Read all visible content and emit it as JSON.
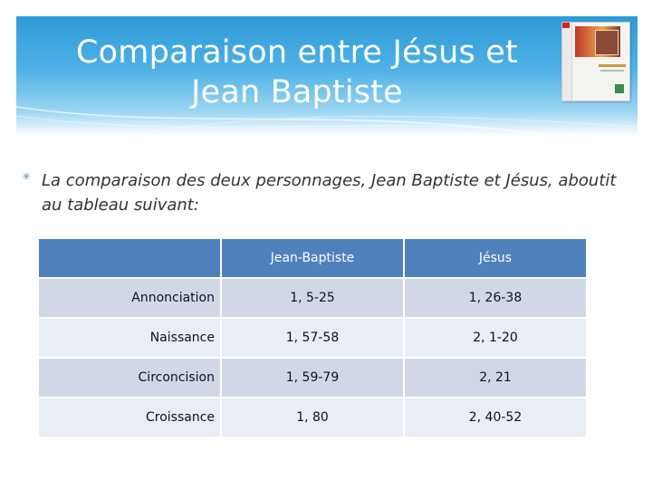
{
  "slide": {
    "title_line1": "Comparaison entre Jésus et",
    "title_line2": "Jean Baptiste",
    "bullet_text": "La comparaison des deux personnages, Jean Baptiste et Jésus, aboutit au tableau suivant:"
  },
  "table": {
    "headers": [
      "",
      "Jean-Baptiste",
      "Jésus"
    ],
    "rows": [
      [
        "Annonciation",
        "1, 5-25",
        "1, 26-38"
      ],
      [
        "Naissance",
        "1, 57-58",
        "2, 1-20"
      ],
      [
        "Circoncision",
        "1, 59-79",
        "2, 21"
      ],
      [
        "Croissance",
        "1, 80",
        "2, 40-52"
      ]
    ]
  },
  "colors": {
    "header_blue": "#2e9ad6",
    "table_header": "#4f81bd",
    "row_odd": "#d0d8e8",
    "row_even": "#e9edf4"
  }
}
